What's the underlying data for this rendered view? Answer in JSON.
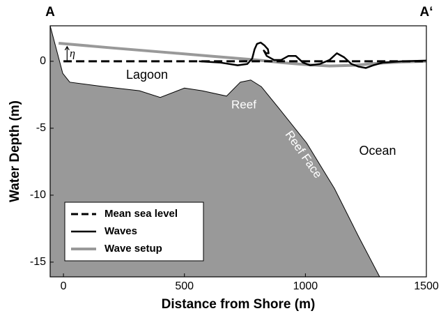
{
  "chart_data": {
    "type": "line",
    "corner_labels": [
      "A",
      "A‘"
    ],
    "x_label": "Distance from Shore (m)",
    "y_label": "Water Depth (m)",
    "xlim": [
      -55,
      1500
    ],
    "ylim": [
      -16.1,
      2.65
    ],
    "xticks": [
      0,
      500,
      1000,
      1500
    ],
    "yticks": [
      -15,
      -10,
      -5,
      0
    ],
    "seabed": {
      "color": "#999999",
      "x": [
        -55,
        -3,
        26,
        170,
        314,
        400,
        500,
        573,
        674,
        731,
        774,
        818,
        890,
        1005,
        1120,
        1220,
        1307
      ],
      "values": [
        2.65,
        -0.9,
        -1.56,
        -1.9,
        -2.2,
        -2.7,
        -2.0,
        -2.2,
        -2.6,
        -1.56,
        -1.4,
        -1.9,
        -3.5,
        -6.1,
        -9.5,
        -13.1,
        -16.1
      ]
    },
    "series": [
      {
        "name": "Mean sea level",
        "color": "#000000",
        "dashed": true,
        "x": [
          0,
          1500
        ],
        "values": [
          0,
          0
        ]
      },
      {
        "name": "Waves",
        "color": "#000000",
        "dashed": false,
        "x": [
          560,
          650,
          720,
          760,
          780,
          790,
          800,
          815,
          830,
          845,
          848,
          838,
          828,
          840,
          870,
          900,
          930,
          960,
          990,
          1020,
          1060,
          1100,
          1130,
          1160,
          1190,
          1220,
          1250,
          1280,
          1320,
          1400,
          1500
        ],
        "values": [
          0,
          -0.1,
          -0.3,
          -0.2,
          0.2,
          0.9,
          1.3,
          1.4,
          1.2,
          0.9,
          0.6,
          0.6,
          0.8,
          0.4,
          0.1,
          0.1,
          0.4,
          0.4,
          -0.1,
          -0.3,
          -0.2,
          0.1,
          0.6,
          0.3,
          -0.2,
          -0.4,
          -0.5,
          -0.3,
          -0.1,
          0,
          0.05
        ]
      },
      {
        "name": "Wave setup",
        "color": "#999999",
        "dashed": false,
        "x": [
          -20,
          200,
          400,
          600,
          800,
          900,
          1000,
          1100,
          1200,
          1300,
          1400,
          1500
        ],
        "values": [
          1.35,
          1.0,
          0.7,
          0.4,
          0.1,
          -0.1,
          -0.25,
          -0.35,
          -0.3,
          -0.15,
          -0.05,
          0
        ]
      }
    ],
    "annotations": [
      "η",
      "Lagoon",
      "Reef",
      "Reef Face",
      "Ocean"
    ],
    "legend": "lower left"
  }
}
